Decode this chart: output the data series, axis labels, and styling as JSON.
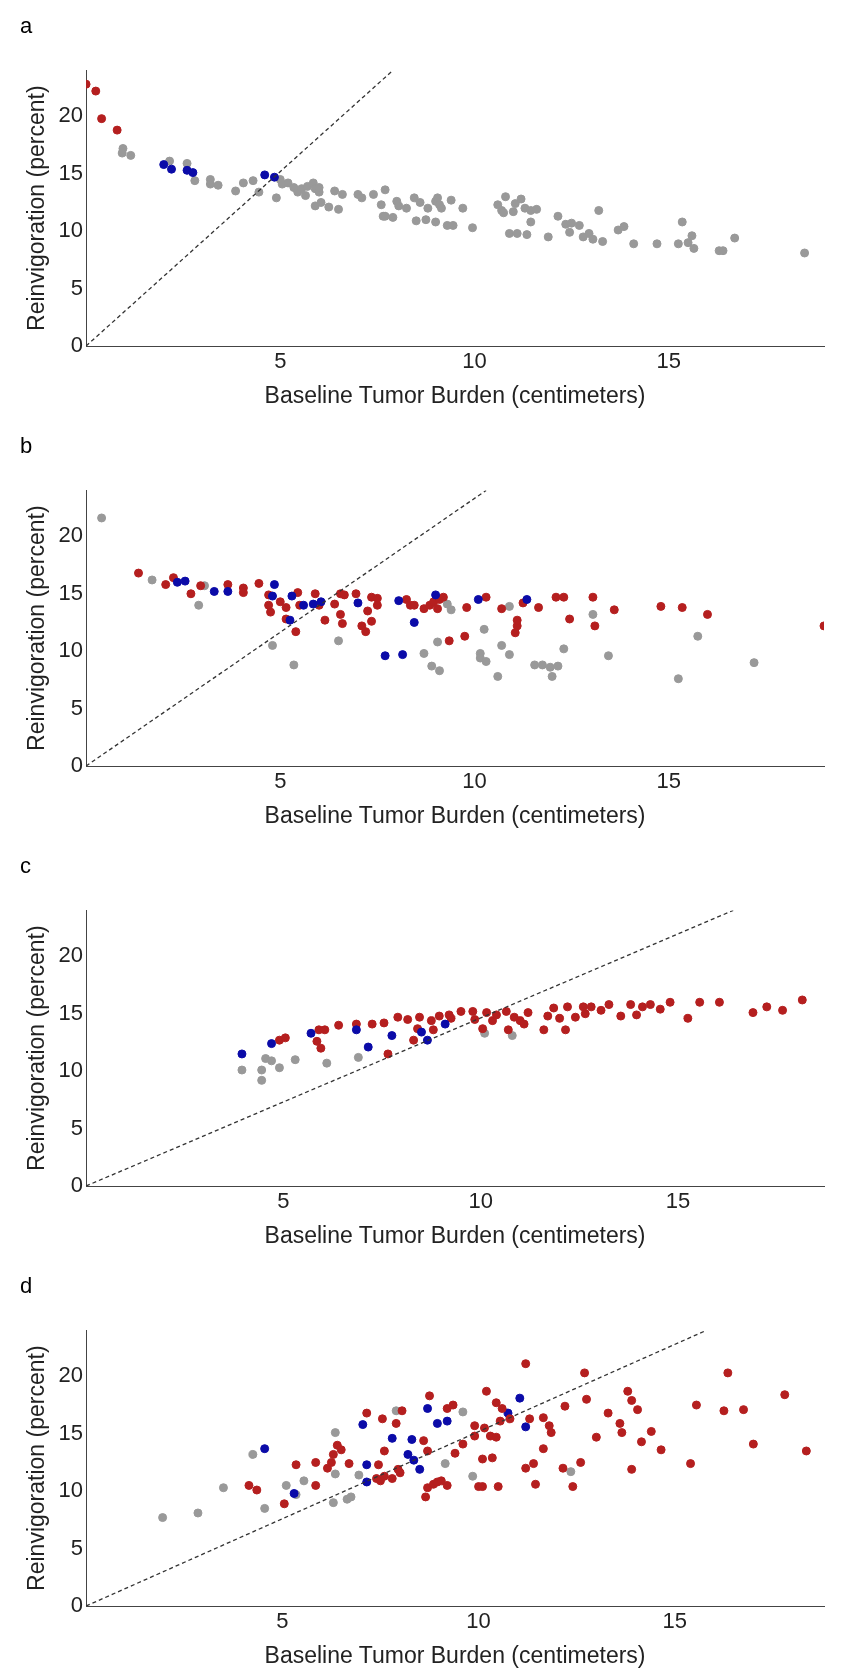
{
  "chart_data": [
    {
      "type": "scatter",
      "title": "a",
      "xlabel": "Baseline Tumor Burden (centimeters)",
      "ylabel": "Reinvigoration (percent)",
      "xlim": [
        0,
        19
      ],
      "ylim": [
        0,
        24
      ],
      "xticks": [
        5,
        10,
        15
      ],
      "yticks": [
        0,
        5,
        10,
        15,
        20
      ],
      "grid": false,
      "legend": false,
      "marker": "circle",
      "series": [
        {
          "color": "#999999",
          "x": [
            0.95,
            1.15,
            0.93,
            2.15,
            2.6,
            2.8,
            3.2,
            3.4,
            3.2,
            3.85,
            4.05,
            4.3,
            4.45,
            4.9,
            5.0,
            5.05,
            5.2,
            5.35,
            5.45,
            5.55,
            5.65,
            5.7,
            5.85,
            5.9,
            6.0,
            5.9,
            6.05,
            6.25,
            6.4,
            6.5,
            6.0,
            6.6,
            7.0,
            7.1,
            7.4,
            7.6,
            7.7,
            7.65,
            7.7,
            7.9,
            8.0,
            8.05,
            8.25,
            8.45,
            8.5,
            8.6,
            8.75,
            8.8,
            9.0,
            9.0,
            9.05,
            9.1,
            9.15,
            9.3,
            9.4,
            9.45,
            9.7,
            9.95,
            10.6,
            10.7,
            10.8,
            10.75,
            10.9,
            11.0,
            11.05,
            11.1,
            11.2,
            11.3,
            11.35,
            11.45,
            11.45,
            11.6,
            11.9,
            12.15,
            12.35,
            12.45,
            12.5,
            12.7,
            12.8,
            12.95,
            13.05,
            13.2,
            13.3,
            13.7,
            13.85,
            14.1,
            14.7,
            15.25,
            15.35,
            15.5,
            15.6,
            15.65,
            16.3,
            16.4,
            16.7,
            18.5
          ],
          "values": [
            17.2,
            16.6,
            16.8,
            16.1,
            15.9,
            14.4,
            14.5,
            14.0,
            14.1,
            13.5,
            14.2,
            14.4,
            13.4,
            12.9,
            14.5,
            14.1,
            14.2,
            13.8,
            13.4,
            13.7,
            13.1,
            13.9,
            14.2,
            13.7,
            13.4,
            12.2,
            12.5,
            12.1,
            13.5,
            11.9,
            13.8,
            13.2,
            13.2,
            12.9,
            13.2,
            12.3,
            13.6,
            11.3,
            11.3,
            11.2,
            12.6,
            12.2,
            12.0,
            12.9,
            10.9,
            12.5,
            11.0,
            12.0,
            12.6,
            10.8,
            12.9,
            12.3,
            12.0,
            10.5,
            12.7,
            10.5,
            12.0,
            10.3,
            12.3,
            11.8,
            13.0,
            11.6,
            9.8,
            11.7,
            12.4,
            9.8,
            12.8,
            12.0,
            9.7,
            11.8,
            10.8,
            11.9,
            9.5,
            11.3,
            10.6,
            9.9,
            10.7,
            10.5,
            9.5,
            9.8,
            9.3,
            11.8,
            9.1,
            10.1,
            10.4,
            8.9,
            8.9,
            8.9,
            10.8,
            9.0,
            9.6,
            8.5,
            8.3,
            8.3,
            9.4,
            8.1
          ]
        },
        {
          "color": "#0b0ba8",
          "x": [
            2.0,
            2.2,
            2.6,
            2.75,
            4.6,
            4.85
          ],
          "values": [
            15.8,
            15.4,
            15.3,
            15.1,
            14.9,
            14.7
          ]
        },
        {
          "color": "#b51f1f",
          "x": [
            0,
            0.25,
            0.4,
            0.8
          ],
          "values": [
            22.8,
            22.2,
            19.8,
            18.8
          ]
        },
        {
          "type": "line",
          "color": "#333333",
          "line_style": "dashed",
          "marker": "none",
          "x": [
            0,
            7.9
          ],
          "values": [
            0,
            24
          ]
        }
      ]
    },
    {
      "type": "scatter",
      "title": "b",
      "xlabel": "Baseline Tumor Burden (centimeters)",
      "ylabel": "Reinvigoration (percent)",
      "xlim": [
        0,
        19
      ],
      "ylim": [
        0,
        24
      ],
      "xticks": [
        5,
        10,
        15
      ],
      "yticks": [
        0,
        5,
        10,
        15,
        20
      ],
      "grid": false,
      "legend": false,
      "marker": "circle",
      "series": [
        {
          "color": "#999999",
          "x": [
            0.4,
            1.7,
            2.9,
            3.05,
            4.8,
            5.35,
            6.5,
            8.7,
            8.9,
            9.05,
            9.1,
            9.3,
            9.4,
            10.15,
            10.15,
            10.25,
            10.3,
            10.6,
            10.7,
            10.9,
            10.9,
            11.55,
            11.75,
            11.95,
            12.0,
            12.15,
            12.3,
            13.05,
            13.45,
            15.25,
            15.75,
            17.2
          ],
          "values": [
            21.6,
            16.2,
            14.0,
            15.7,
            10.5,
            8.8,
            10.9,
            9.8,
            8.7,
            10.8,
            8.3,
            14.1,
            13.6,
            9.8,
            9.4,
            11.9,
            9.1,
            7.8,
            10.5,
            13.9,
            9.7,
            8.8,
            8.8,
            8.6,
            7.8,
            8.7,
            10.2,
            13.2,
            9.6,
            7.6,
            11.3,
            9.0
          ]
        },
        {
          "color": "#b51f1f",
          "x": [
            1.35,
            2.05,
            2.25,
            2.7,
            2.95,
            3.65,
            4.05,
            4.05,
            4.45,
            4.7,
            4.7,
            4.75,
            5.0,
            5.15,
            5.15,
            5.4,
            5.45,
            5.5,
            5.9,
            6.0,
            6.15,
            6.4,
            6.55,
            6.55,
            6.6,
            6.65,
            6.95,
            7.1,
            7.2,
            7.25,
            7.35,
            7.35,
            7.5,
            7.5,
            8.25,
            8.35,
            8.45,
            8.7,
            8.85,
            8.95,
            9.05,
            9.1,
            9.2,
            9.35,
            9.75,
            9.8,
            10.3,
            10.7,
            11.05,
            11.1,
            11.1,
            11.25,
            11.65,
            12.1,
            12.3,
            12.45,
            13.05,
            13.1,
            13.6,
            14.8,
            15.35,
            16.0,
            19.0
          ],
          "values": [
            16.8,
            15.8,
            16.4,
            15.0,
            15.7,
            15.8,
            15.5,
            15.1,
            15.9,
            14.0,
            14.9,
            13.4,
            14.3,
            13.8,
            12.8,
            11.7,
            15.1,
            14.0,
            15.0,
            14.0,
            12.7,
            14.1,
            15.0,
            13.2,
            12.4,
            14.9,
            15.0,
            12.2,
            11.7,
            13.5,
            12.6,
            14.7,
            14.6,
            14.0,
            14.5,
            14.0,
            14.0,
            13.7,
            14.0,
            14.3,
            13.7,
            14.5,
            14.7,
            10.9,
            11.3,
            13.8,
            14.7,
            13.7,
            11.6,
            12.2,
            12.7,
            14.2,
            13.8,
            14.7,
            14.7,
            12.8,
            14.7,
            12.2,
            13.6,
            13.9,
            13.8,
            13.2,
            12.2
          ]
        },
        {
          "color": "#0b0ba8",
          "x": [
            2.35,
            2.55,
            3.3,
            3.65,
            4.85,
            4.8,
            5.3,
            5.25,
            5.6,
            5.85,
            6.05,
            7.0,
            7.7,
            8.15,
            8.05,
            8.45,
            9.0,
            10.1,
            11.35
          ],
          "values": [
            16.0,
            16.1,
            15.2,
            15.2,
            15.8,
            14.8,
            14.8,
            12.7,
            14.0,
            14.1,
            14.3,
            14.2,
            9.6,
            9.7,
            14.4,
            12.5,
            14.9,
            14.5,
            14.5
          ]
        },
        {
          "type": "line",
          "color": "#333333",
          "line_style": "dashed",
          "marker": "none",
          "x": [
            0,
            10.3
          ],
          "values": [
            0,
            24
          ]
        }
      ]
    },
    {
      "type": "scatter",
      "title": "c",
      "xlabel": "Baseline Tumor Burden (centimeters)",
      "ylabel": "Reinvigoration (percent)",
      "xlim": [
        0,
        18.7
      ],
      "ylim": [
        0,
        24
      ],
      "xticks": [
        5,
        10,
        15
      ],
      "yticks": [
        0,
        5,
        10,
        15,
        20
      ],
      "grid": false,
      "legend": false,
      "marker": "circle",
      "series": [
        {
          "color": "#999999",
          "x": [
            3.95,
            4.45,
            4.55,
            4.7,
            4.45,
            4.9,
            5.3,
            6.1,
            6.9,
            10.1,
            10.8
          ],
          "values": [
            10.1,
            10.1,
            11.1,
            10.9,
            9.2,
            10.3,
            11.0,
            10.7,
            11.2,
            13.3,
            13.1
          ]
        },
        {
          "color": "#b51f1f",
          "x": [
            4.9,
            5.05,
            5.85,
            5.95,
            5.9,
            6.05,
            6.4,
            6.85,
            7.25,
            7.55,
            7.65,
            7.9,
            8.15,
            8.3,
            8.4,
            8.45,
            8.75,
            8.8,
            8.95,
            9.2,
            9.25,
            9.5,
            9.8,
            9.85,
            10.05,
            10.15,
            10.3,
            10.4,
            10.65,
            10.7,
            10.85,
            11.0,
            11.1,
            11.2,
            11.6,
            11.7,
            11.85,
            12.0,
            12.15,
            12.2,
            12.4,
            12.6,
            12.65,
            12.8,
            13.05,
            13.25,
            13.55,
            13.8,
            13.95,
            14.1,
            14.3,
            14.55,
            14.8,
            15.25,
            15.55,
            16.05,
            16.9,
            17.25,
            17.65,
            18.15
          ],
          "values": [
            12.7,
            12.9,
            12.6,
            12.0,
            13.6,
            13.6,
            14.0,
            14.1,
            14.1,
            14.2,
            11.5,
            14.7,
            14.5,
            12.7,
            13.7,
            14.7,
            14.4,
            13.6,
            14.8,
            14.9,
            14.6,
            15.2,
            15.2,
            14.5,
            13.7,
            15.1,
            14.4,
            14.9,
            15.2,
            13.6,
            14.7,
            14.4,
            14.1,
            15.1,
            13.6,
            14.8,
            15.5,
            14.6,
            13.6,
            15.6,
            14.7,
            15.6,
            15.0,
            15.6,
            15.3,
            15.8,
            14.8,
            15.8,
            14.9,
            15.6,
            15.8,
            15.4,
            16.0,
            14.6,
            16.0,
            16.0,
            15.1,
            15.6,
            15.3,
            16.2
          ]
        },
        {
          "color": "#0b0ba8",
          "x": [
            3.95,
            4.7,
            5.7,
            6.85,
            7.15,
            7.75,
            8.5,
            8.65,
            9.1
          ],
          "values": [
            11.5,
            12.4,
            13.3,
            13.6,
            12.1,
            13.1,
            13.4,
            12.7,
            14.1
          ]
        },
        {
          "type": "line",
          "color": "#333333",
          "line_style": "dashed",
          "marker": "none",
          "x": [
            0,
            16.4
          ],
          "values": [
            0,
            24
          ]
        }
      ]
    },
    {
      "type": "scatter",
      "title": "d",
      "xlabel": "Baseline Tumor Burden (centimeters)",
      "ylabel": "Reinvigoration (percent)",
      "xlim": [
        0,
        18.8
      ],
      "ylim": [
        0,
        24
      ],
      "xticks": [
        5,
        10,
        15
      ],
      "yticks": [
        0,
        5,
        10,
        15,
        20
      ],
      "grid": false,
      "legend": false,
      "marker": "circle",
      "series": [
        {
          "color": "#999999",
          "x": [
            1.95,
            2.85,
            3.5,
            4.25,
            4.55,
            5.1,
            5.35,
            5.55,
            6.3,
            6.35,
            6.35,
            6.65,
            6.75,
            6.95,
            7.9,
            9.15,
            9.6,
            9.85,
            12.35
          ],
          "values": [
            7.7,
            8.1,
            10.3,
            13.2,
            8.5,
            10.5,
            9.7,
            10.9,
            9.0,
            15.1,
            11.5,
            9.3,
            9.5,
            11.4,
            17.0,
            12.4,
            16.9,
            11.3,
            11.7
          ]
        },
        {
          "color": "#0b0ba8",
          "x": [
            4.55,
            5.3,
            7.05,
            7.15,
            7.15,
            7.8,
            8.2,
            8.3,
            8.35,
            8.5,
            8.7,
            8.95,
            9.2,
            10.75,
            11.05,
            11.2
          ],
          "values": [
            13.7,
            9.8,
            15.8,
            12.3,
            10.8,
            14.6,
            13.2,
            14.5,
            12.7,
            11.9,
            17.2,
            15.9,
            16.1,
            16.8,
            18.1,
            15.6
          ]
        },
        {
          "color": "#b51f1f",
          "x": [
            4.15,
            4.35,
            5.05,
            5.35,
            5.85,
            5.85,
            6.15,
            6.25,
            6.3,
            6.4,
            6.5,
            6.7,
            7.15,
            7.4,
            7.45,
            7.5,
            7.55,
            7.6,
            7.6,
            7.9,
            7.95,
            8.0,
            8.05,
            7.8,
            8.6,
            8.65,
            8.7,
            8.7,
            8.75,
            8.85,
            8.95,
            9.05,
            9.2,
            9.2,
            9.35,
            9.4,
            9.6,
            9.9,
            9.9,
            10.0,
            10.1,
            10.1,
            10.15,
            10.2,
            10.35,
            10.3,
            10.45,
            10.45,
            10.5,
            10.55,
            10.6,
            10.8,
            11.2,
            11.2,
            11.3,
            11.4,
            11.45,
            11.65,
            11.65,
            11.8,
            11.85,
            12.15,
            12.2,
            12.4,
            12.6,
            12.7,
            12.75,
            13.0,
            13.3,
            13.6,
            13.65,
            13.8,
            13.9,
            13.9,
            14.05,
            14.15,
            14.4,
            14.65,
            15.4,
            15.55,
            16.25,
            16.35,
            16.75,
            17.0,
            17.8,
            18.35
          ],
          "values": [
            10.5,
            10.1,
            8.9,
            12.3,
            12.5,
            10.5,
            12.0,
            12.5,
            13.2,
            14.0,
            13.6,
            12.4,
            16.8,
            11.1,
            12.3,
            10.9,
            16.3,
            11.3,
            13.5,
            15.9,
            11.9,
            11.6,
            17.0,
            11.1,
            14.4,
            9.5,
            10.3,
            13.5,
            18.3,
            10.6,
            10.8,
            10.9,
            17.2,
            10.5,
            17.5,
            13.3,
            14.1,
            14.8,
            15.7,
            10.4,
            10.4,
            12.8,
            15.5,
            18.7,
            12.9,
            14.8,
            14.7,
            17.7,
            10.4,
            16.1,
            17.2,
            16.3,
            21.1,
            12.0,
            16.3,
            12.4,
            10.6,
            13.7,
            16.4,
            15.7,
            15.1,
            12.0,
            17.4,
            10.4,
            12.5,
            20.3,
            18.0,
            14.7,
            16.8,
            15.9,
            15.1,
            18.7,
            17.9,
            11.9,
            17.1,
            14.3,
            15.2,
            13.6,
            12.4,
            17.5,
            17.0,
            20.3,
            17.1,
            14.1,
            18.4,
            13.5
          ]
        },
        {
          "type": "line",
          "color": "#333333",
          "line_style": "dashed",
          "marker": "none",
          "x": [
            0,
            15.8
          ],
          "values": [
            0,
            24
          ]
        }
      ]
    }
  ]
}
